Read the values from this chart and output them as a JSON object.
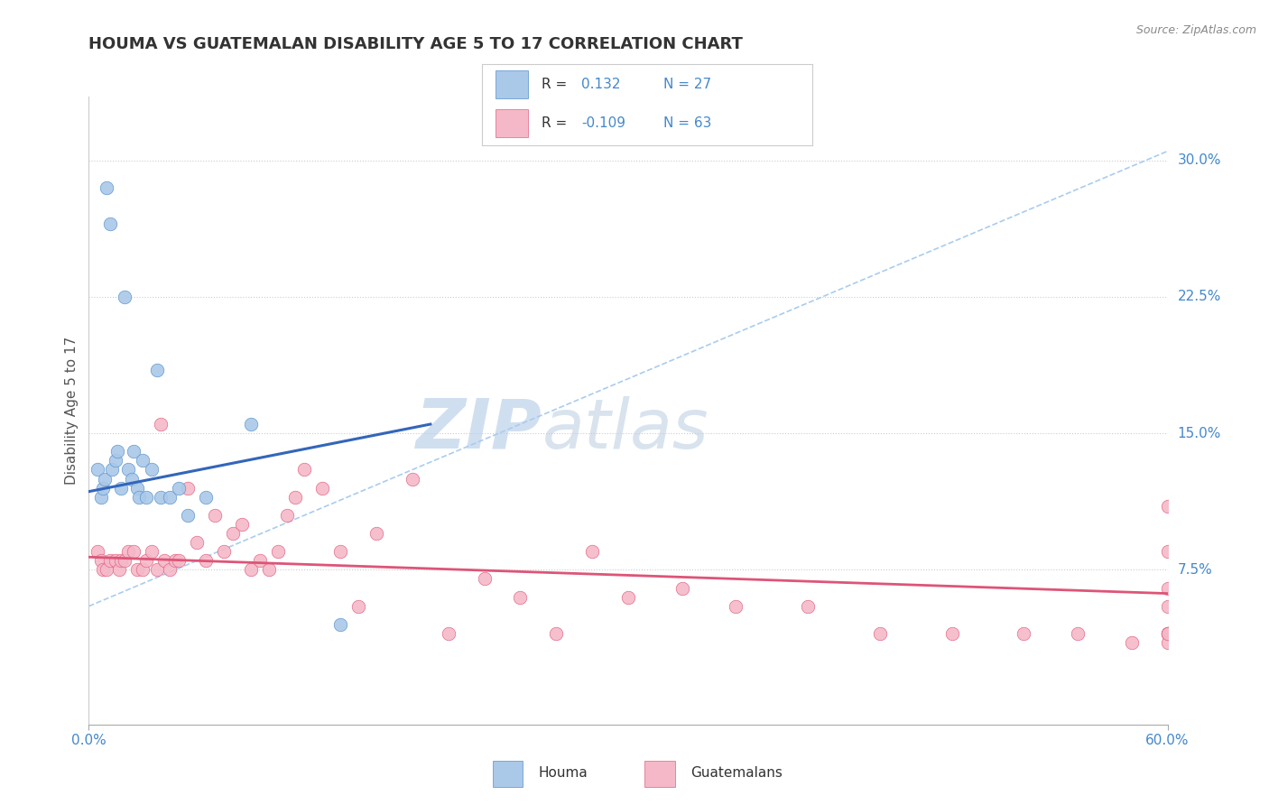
{
  "title": "HOUMA VS GUATEMALAN DISABILITY AGE 5 TO 17 CORRELATION CHART",
  "source_text": "Source: ZipAtlas.com",
  "ylabel": "Disability Age 5 to 17",
  "xlim": [
    0.0,
    0.6
  ],
  "ylim": [
    -0.01,
    0.335
  ],
  "xtick_positions": [
    0.0,
    0.6
  ],
  "xtick_labels": [
    "0.0%",
    "60.0%"
  ],
  "yticks_right": [
    0.075,
    0.15,
    0.225,
    0.3
  ],
  "ytick_labels_right": [
    "7.5%",
    "15.0%",
    "22.5%",
    "30.0%"
  ],
  "houma_color": "#aac8e8",
  "guatemalan_color": "#f5b8c8",
  "houma_edge_color": "#5591cc",
  "guatemalan_edge_color": "#e06080",
  "houma_line_color": "#3366bb",
  "guatemalan_line_color": "#dd5577",
  "dashed_line_color": "#aaccee",
  "legend_R1": "R =  0.132",
  "legend_N1": "N = 27",
  "legend_R2": "R = -0.109",
  "legend_N2": "N = 63",
  "legend_label1": "Houma",
  "legend_label2": "Guatemalans",
  "watermark_ZIP": "ZIP",
  "watermark_atlas": "atlas",
  "background_color": "#ffffff",
  "right_label_color": "#4488cc",
  "houma_scatter_x": [
    0.005,
    0.007,
    0.008,
    0.009,
    0.01,
    0.012,
    0.013,
    0.015,
    0.016,
    0.018,
    0.02,
    0.022,
    0.024,
    0.025,
    0.027,
    0.028,
    0.03,
    0.032,
    0.035,
    0.038,
    0.04,
    0.045,
    0.05,
    0.055,
    0.065,
    0.09,
    0.14
  ],
  "houma_scatter_y": [
    0.13,
    0.115,
    0.12,
    0.125,
    0.285,
    0.265,
    0.13,
    0.135,
    0.14,
    0.12,
    0.225,
    0.13,
    0.125,
    0.14,
    0.12,
    0.115,
    0.135,
    0.115,
    0.13,
    0.185,
    0.115,
    0.115,
    0.12,
    0.105,
    0.115,
    0.155,
    0.045
  ],
  "guatemalan_scatter_x": [
    0.005,
    0.007,
    0.008,
    0.01,
    0.012,
    0.015,
    0.017,
    0.018,
    0.02,
    0.022,
    0.025,
    0.027,
    0.03,
    0.032,
    0.035,
    0.038,
    0.04,
    0.042,
    0.045,
    0.048,
    0.05,
    0.055,
    0.06,
    0.065,
    0.07,
    0.075,
    0.08,
    0.085,
    0.09,
    0.095,
    0.1,
    0.105,
    0.11,
    0.115,
    0.12,
    0.13,
    0.14,
    0.15,
    0.16,
    0.18,
    0.2,
    0.22,
    0.24,
    0.26,
    0.28,
    0.3,
    0.33,
    0.36,
    0.4,
    0.44,
    0.48,
    0.52,
    0.55,
    0.58,
    0.6,
    0.6,
    0.6,
    0.6,
    0.6,
    0.6,
    0.6,
    0.6,
    0.6
  ],
  "guatemalan_scatter_y": [
    0.085,
    0.08,
    0.075,
    0.075,
    0.08,
    0.08,
    0.075,
    0.08,
    0.08,
    0.085,
    0.085,
    0.075,
    0.075,
    0.08,
    0.085,
    0.075,
    0.155,
    0.08,
    0.075,
    0.08,
    0.08,
    0.12,
    0.09,
    0.08,
    0.105,
    0.085,
    0.095,
    0.1,
    0.075,
    0.08,
    0.075,
    0.085,
    0.105,
    0.115,
    0.13,
    0.12,
    0.085,
    0.055,
    0.095,
    0.125,
    0.04,
    0.07,
    0.06,
    0.04,
    0.085,
    0.06,
    0.065,
    0.055,
    0.055,
    0.04,
    0.04,
    0.04,
    0.04,
    0.035,
    0.04,
    0.04,
    0.04,
    0.035,
    0.04,
    0.065,
    0.055,
    0.085,
    0.11
  ],
  "houma_trend_x": [
    0.0,
    0.19
  ],
  "houma_trend_y": [
    0.118,
    0.155
  ],
  "guatemalan_trend_x": [
    0.0,
    0.6
  ],
  "guatemalan_trend_y": [
    0.082,
    0.062
  ],
  "dashed_trend_x": [
    0.0,
    0.6
  ],
  "dashed_trend_y": [
    0.055,
    0.305
  ]
}
